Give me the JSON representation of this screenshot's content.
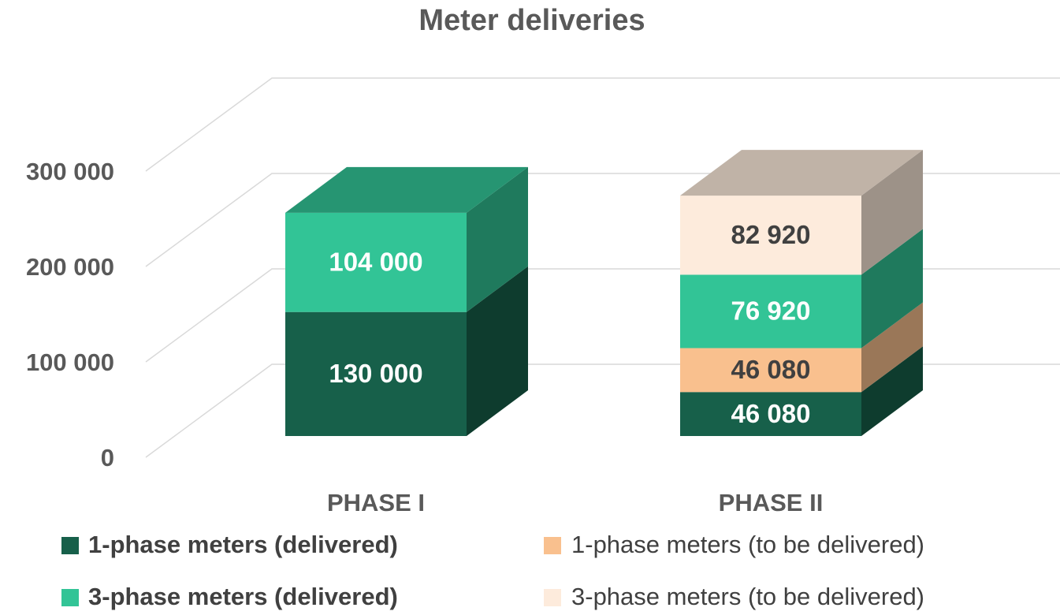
{
  "chart_data": {
    "type": "bar3d_stacked",
    "title": "Meter deliveries",
    "categories": [
      "PHASE I",
      "PHASE II"
    ],
    "series": [
      {
        "name": "1-phase meters (delivered)",
        "color": "#17604a",
        "values": [
          130000,
          46080
        ],
        "value_labels": [
          "130 000",
          "46 080"
        ]
      },
      {
        "name": "1-phase meters (to be delivered)",
        "color": "#f9c08e",
        "values": [
          null,
          46080
        ],
        "value_labels": [
          null,
          "46 080"
        ]
      },
      {
        "name": "3-phase meters (delivered)",
        "color": "#32c496",
        "values": [
          104000,
          76920
        ],
        "value_labels": [
          "104 000",
          "76 920"
        ]
      },
      {
        "name": "3-phase meters (to be delivered)",
        "color": "#fdebdc",
        "values": [
          null,
          82920
        ],
        "value_labels": [
          null,
          "82 920"
        ]
      }
    ],
    "ylim": [
      0,
      300000
    ],
    "yticks": [
      0,
      {
        "value": 100000,
        "label": "100 000"
      },
      {
        "value": 200000,
        "label": "200 000"
      },
      {
        "value": 300000,
        "label": "300 000"
      }
    ],
    "grid": true
  }
}
